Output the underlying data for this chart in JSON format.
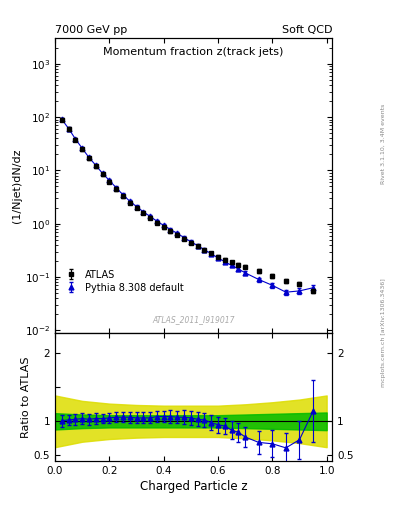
{
  "title_main": "Momentum fraction z(track jets)",
  "header_left": "7000 GeV pp",
  "header_right": "Soft QCD",
  "ylabel_main": "(1/Njet)dN/dz",
  "ylabel_ratio": "Ratio to ATLAS",
  "xlabel": "Charged Particle z",
  "watermark": "ATLAS_2011_I919017",
  "right_label_top": "Rivet 3.1.10, 3.4M events",
  "right_label_bot": "mcplots.cern.ch [arXiv:1306.3436]",
  "atlas_x": [
    0.025,
    0.05,
    0.075,
    0.1,
    0.125,
    0.15,
    0.175,
    0.2,
    0.225,
    0.25,
    0.275,
    0.3,
    0.325,
    0.35,
    0.375,
    0.4,
    0.425,
    0.45,
    0.475,
    0.5,
    0.525,
    0.55,
    0.575,
    0.6,
    0.625,
    0.65,
    0.675,
    0.7,
    0.75,
    0.8,
    0.85,
    0.9,
    0.95
  ],
  "atlas_y": [
    90,
    60,
    38,
    25,
    17,
    12,
    8.5,
    6.2,
    4.5,
    3.3,
    2.5,
    2.0,
    1.6,
    1.3,
    1.05,
    0.87,
    0.73,
    0.62,
    0.52,
    0.44,
    0.38,
    0.32,
    0.28,
    0.24,
    0.21,
    0.19,
    0.17,
    0.155,
    0.13,
    0.105,
    0.085,
    0.075,
    0.055
  ],
  "atlas_yerr": [
    6,
    4,
    2.5,
    1.7,
    1.1,
    0.8,
    0.55,
    0.4,
    0.3,
    0.22,
    0.17,
    0.13,
    0.1,
    0.085,
    0.07,
    0.057,
    0.048,
    0.041,
    0.034,
    0.029,
    0.025,
    0.021,
    0.018,
    0.016,
    0.014,
    0.012,
    0.011,
    0.01,
    0.009,
    0.007,
    0.006,
    0.006,
    0.005
  ],
  "pythia_x": [
    0.025,
    0.05,
    0.075,
    0.1,
    0.125,
    0.15,
    0.175,
    0.2,
    0.225,
    0.25,
    0.275,
    0.3,
    0.325,
    0.35,
    0.375,
    0.4,
    0.425,
    0.45,
    0.475,
    0.5,
    0.525,
    0.55,
    0.575,
    0.6,
    0.625,
    0.65,
    0.675,
    0.7,
    0.75,
    0.8,
    0.85,
    0.9,
    0.95
  ],
  "pythia_y": [
    91,
    61,
    39,
    26,
    17.5,
    12.5,
    8.8,
    6.5,
    4.75,
    3.5,
    2.65,
    2.1,
    1.68,
    1.37,
    1.12,
    0.93,
    0.78,
    0.66,
    0.55,
    0.46,
    0.39,
    0.325,
    0.275,
    0.228,
    0.195,
    0.165,
    0.142,
    0.12,
    0.09,
    0.07,
    0.052,
    0.055,
    0.063
  ],
  "pythia_yerr": [
    5,
    3.5,
    2.2,
    1.5,
    1.0,
    0.7,
    0.5,
    0.37,
    0.28,
    0.2,
    0.16,
    0.12,
    0.09,
    0.08,
    0.065,
    0.053,
    0.044,
    0.037,
    0.031,
    0.026,
    0.022,
    0.019,
    0.016,
    0.014,
    0.012,
    0.011,
    0.01,
    0.009,
    0.008,
    0.007,
    0.006,
    0.007,
    0.008
  ],
  "ratio_x": [
    0.025,
    0.05,
    0.075,
    0.1,
    0.125,
    0.15,
    0.175,
    0.2,
    0.225,
    0.25,
    0.275,
    0.3,
    0.325,
    0.35,
    0.375,
    0.4,
    0.425,
    0.45,
    0.475,
    0.5,
    0.525,
    0.55,
    0.575,
    0.6,
    0.625,
    0.65,
    0.675,
    0.7,
    0.75,
    0.8,
    0.85,
    0.9,
    0.95
  ],
  "ratio_y": [
    1.01,
    1.02,
    1.03,
    1.04,
    1.03,
    1.04,
    1.04,
    1.05,
    1.06,
    1.06,
    1.06,
    1.05,
    1.05,
    1.05,
    1.07,
    1.07,
    1.07,
    1.06,
    1.06,
    1.05,
    1.03,
    1.02,
    0.98,
    0.95,
    0.93,
    0.87,
    0.84,
    0.77,
    0.69,
    0.67,
    0.61,
    0.73,
    1.15
  ],
  "ratio_yerr": [
    0.09,
    0.08,
    0.08,
    0.08,
    0.08,
    0.08,
    0.07,
    0.07,
    0.07,
    0.07,
    0.08,
    0.08,
    0.08,
    0.08,
    0.08,
    0.08,
    0.09,
    0.09,
    0.1,
    0.1,
    0.1,
    0.1,
    0.11,
    0.12,
    0.12,
    0.13,
    0.14,
    0.15,
    0.17,
    0.2,
    0.22,
    0.28,
    0.45
  ],
  "green_band_x": [
    0.0,
    0.1,
    0.2,
    0.3,
    0.4,
    0.5,
    0.6,
    0.7,
    0.8,
    0.9,
    1.0
  ],
  "green_band_lo": [
    0.88,
    0.9,
    0.91,
    0.91,
    0.91,
    0.91,
    0.91,
    0.9,
    0.89,
    0.88,
    0.87
  ],
  "green_band_hi": [
    1.12,
    1.1,
    1.09,
    1.09,
    1.09,
    1.09,
    1.09,
    1.1,
    1.11,
    1.12,
    1.13
  ],
  "yellow_band_x": [
    0.0,
    0.1,
    0.2,
    0.3,
    0.4,
    0.5,
    0.6,
    0.7,
    0.8,
    0.9,
    1.0
  ],
  "yellow_band_lo": [
    0.62,
    0.7,
    0.74,
    0.76,
    0.77,
    0.77,
    0.77,
    0.75,
    0.72,
    0.68,
    0.62
  ],
  "yellow_band_hi": [
    1.38,
    1.3,
    1.26,
    1.24,
    1.23,
    1.23,
    1.23,
    1.25,
    1.28,
    1.32,
    1.38
  ],
  "atlas_color": "#000000",
  "pythia_color": "#0000cc",
  "green_color": "#00bb00",
  "yellow_color": "#dddd00",
  "ylim_main": [
    0.009,
    3000
  ],
  "ylim_ratio": [
    0.42,
    2.3
  ],
  "xlim": [
    0.0,
    1.02
  ]
}
